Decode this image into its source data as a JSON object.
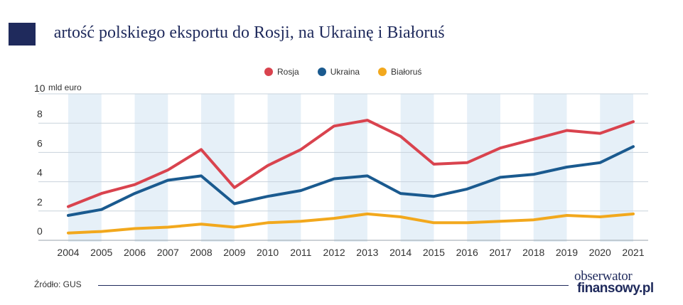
{
  "header": {
    "title_initial": "W",
    "title_rest": "artość polskiego eksportu do Rosji, na Ukrainę i Białoruś"
  },
  "footer": {
    "source": "Źródło: GUS",
    "logo_top": "obserwator",
    "logo_bottom": "finansowy.pl"
  },
  "colors": {
    "rosja": "#d9434e",
    "ukraina": "#1a5a8f",
    "bialorus": "#f2a81d",
    "band": "#e6f0f8",
    "title": "#1f2a5c"
  },
  "chart_data": {
    "type": "line",
    "title": "Wartość polskiego eksportu do Rosji, na Ukrainę i Białoruś",
    "ylabel": "mld euro",
    "ylim": [
      0,
      10
    ],
    "yticks": [
      0,
      2,
      4,
      6,
      8,
      10
    ],
    "legend_position": "top-center",
    "grid": true,
    "x": [
      "2004",
      "2005",
      "2006",
      "2007",
      "2008",
      "2009",
      "2010",
      "2011",
      "2012",
      "2013",
      "2014",
      "2015",
      "2016",
      "2017",
      "2018",
      "2019",
      "2020",
      "2021"
    ],
    "series": [
      {
        "name": "Rosja",
        "color": "#d9434e",
        "values": [
          2.3,
          3.2,
          3.8,
          4.8,
          6.2,
          3.6,
          5.1,
          6.2,
          7.8,
          8.2,
          7.1,
          5.2,
          5.3,
          6.3,
          6.9,
          7.5,
          7.3,
          8.1
        ]
      },
      {
        "name": "Ukraina",
        "color": "#1a5a8f",
        "values": [
          1.7,
          2.1,
          3.2,
          4.1,
          4.4,
          2.5,
          3.0,
          3.4,
          4.2,
          4.4,
          3.2,
          3.0,
          3.5,
          4.3,
          4.5,
          5.0,
          5.3,
          6.4
        ]
      },
      {
        "name": "Białoruś",
        "color": "#f2a81d",
        "values": [
          0.5,
          0.6,
          0.8,
          0.9,
          1.1,
          0.9,
          1.2,
          1.3,
          1.5,
          1.8,
          1.6,
          1.2,
          1.2,
          1.3,
          1.4,
          1.7,
          1.6,
          1.8
        ]
      }
    ]
  }
}
